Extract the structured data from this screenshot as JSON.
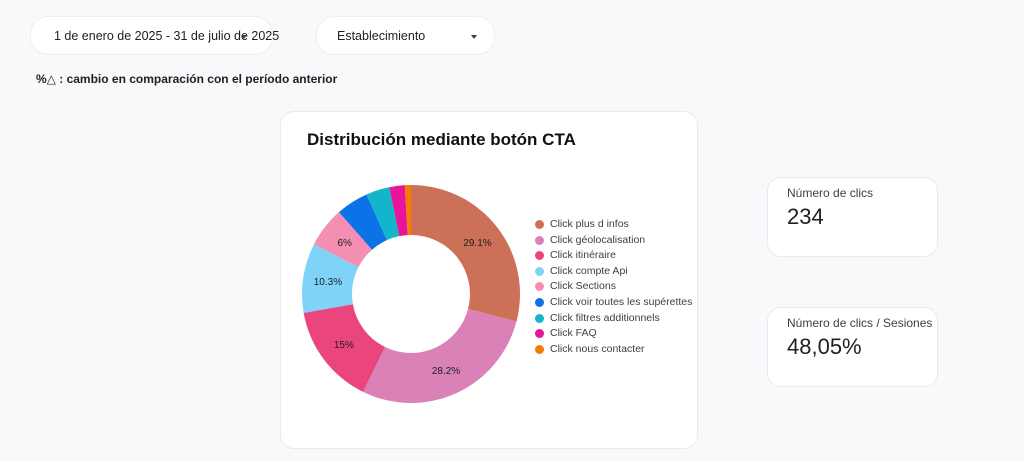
{
  "filters": {
    "date_range": "1 de enero de 2025 - 31 de julio de 2025",
    "establishment": "Establecimiento"
  },
  "note": "%△ : cambio en comparación con el período anterior",
  "chart_data": {
    "type": "pie",
    "donut": true,
    "title": "Distribución mediante botón CTA",
    "legend_position": "right",
    "categories": [
      "Click plus d infos",
      "Click géolocalisation",
      "Click itinéraire",
      "Click compte Api",
      "Click Sections",
      "Click voir toutes les supérettes",
      "Click filtres additionnels",
      "Click FAQ",
      "Click nous contacter"
    ],
    "values": [
      29.1,
      28.2,
      15,
      10.3,
      6,
      4.8,
      3.5,
      2.3,
      0.9
    ],
    "slice_labels": [
      "29.1%",
      "28.2%",
      "15%",
      "10.3%",
      "6%",
      "",
      "",
      "",
      ""
    ],
    "colors": [
      "#cc7057",
      "#da82b8",
      "#ea457c",
      "#7fd3f7",
      "#f48fb1",
      "#0b72e7",
      "#12b5cb",
      "#e8149a",
      "#f57c00"
    ]
  },
  "kpis": [
    {
      "label": "Número de clics",
      "value": "234"
    },
    {
      "label": "Número de clics / Sesiones",
      "value": "48,05%"
    }
  ]
}
